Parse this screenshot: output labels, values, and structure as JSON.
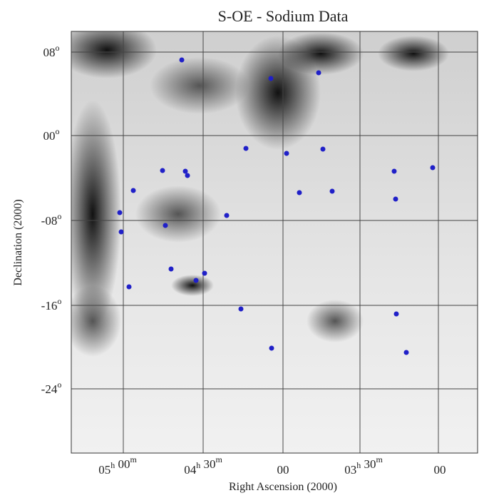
{
  "title": "S-OE - Sodium Data",
  "x_axis_label": "Right Ascension (2000)",
  "y_axis_label": "Declination (2000)",
  "x_tick_labels": [
    [
      {
        "base": "05",
        "sup": "h"
      },
      {
        "base": " 00",
        "sup": "m"
      }
    ],
    [
      {
        "base": "04",
        "sup": "h"
      },
      {
        "base": " 30",
        "sup": "m"
      }
    ],
    [
      {
        "base": "00"
      }
    ],
    [
      {
        "base": "03",
        "sup": "h"
      },
      {
        "base": " 30",
        "sup": "m"
      }
    ],
    [
      {
        "base": "00"
      }
    ]
  ],
  "y_tick_labels": [
    {
      "base": "08",
      "sup": "o"
    },
    {
      "base": "00",
      "sup": "o"
    },
    {
      "base": "-08",
      "sup": "o"
    },
    {
      "base": "-16",
      "sup": "o"
    },
    {
      "base": "-24",
      "sup": "o"
    }
  ]
}
